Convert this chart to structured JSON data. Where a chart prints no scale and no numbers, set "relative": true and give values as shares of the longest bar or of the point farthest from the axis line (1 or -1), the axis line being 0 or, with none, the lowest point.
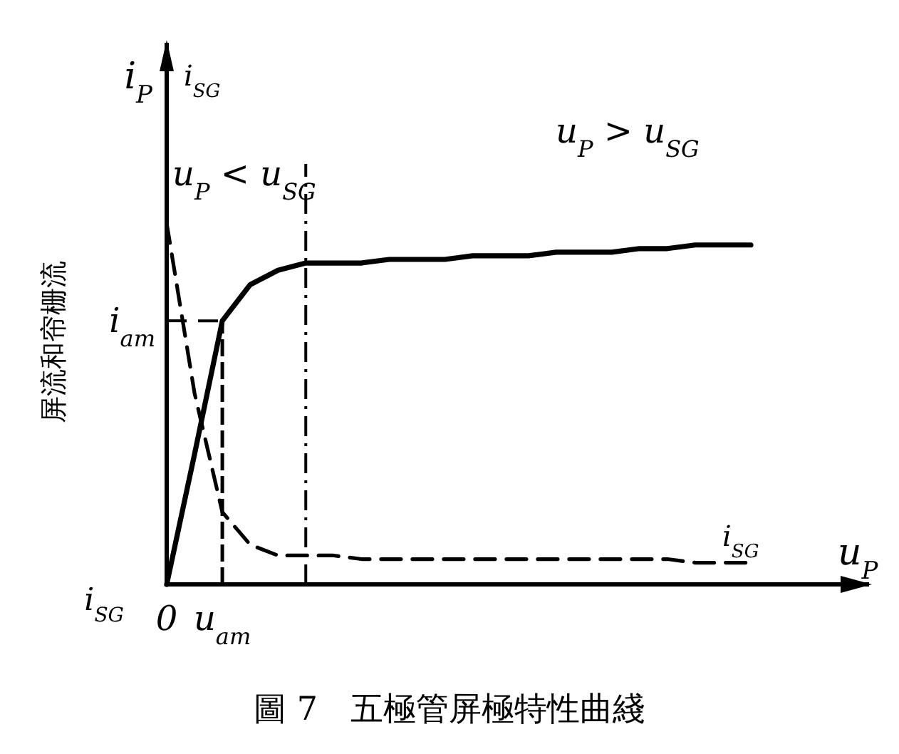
{
  "chart_data": {
    "type": "line",
    "title": "圖 7　五極管屏極特性曲綫",
    "xlabel": "u$_{P}$",
    "ylabel": "屏流和帘栅流",
    "relative": true,
    "categories": [
      "0",
      null,
      "u$_{am}$",
      null,
      null,
      null,
      null,
      null,
      null,
      null,
      null,
      null,
      null,
      null,
      null,
      null,
      null,
      null,
      null,
      null,
      null,
      null,
      null,
      null,
      null,
      null
    ],
    "series": [
      {
        "color": "#000000",
        "line_style": "solid",
        "values": [
          0,
          0.36,
          0.73,
          0.83,
          0.87,
          0.89,
          0.89,
          0.89,
          0.9,
          0.9,
          0.9,
          0.91,
          0.91,
          0.91,
          0.92,
          0.92,
          0.92,
          0.93,
          0.93,
          0.94,
          0.94,
          0.94,
          null,
          null,
          null,
          null
        ]
      },
      {
        "name": "i$_{SG}$",
        "color": "#000000",
        "line_style": "dashed",
        "values": [
          1.0,
          0.53,
          0.2,
          0.11,
          0.08,
          0.08,
          0.08,
          0.07,
          0.07,
          0.07,
          0.07,
          0.07,
          0.07,
          0.07,
          0.07,
          0.07,
          0.07,
          0.07,
          0.07,
          0.06,
          0.06,
          0.06,
          null,
          null,
          null,
          null
        ]
      }
    ],
    "ref_lines": [
      {
        "axis": "x",
        "value": "u$_{am}$",
        "line_style": "dashed"
      },
      {
        "axis": "y",
        "value": 0.73,
        "label": "i$_{am}$",
        "line_style": "dashed"
      }
    ],
    "annotations": [
      "i$_{P}$",
      "i$_{SG}$",
      "u$_{P}$ > u$_{SG}$",
      "u$_{P}$ < u$_{SG}$",
      "i$_{SG}$"
    ]
  }
}
